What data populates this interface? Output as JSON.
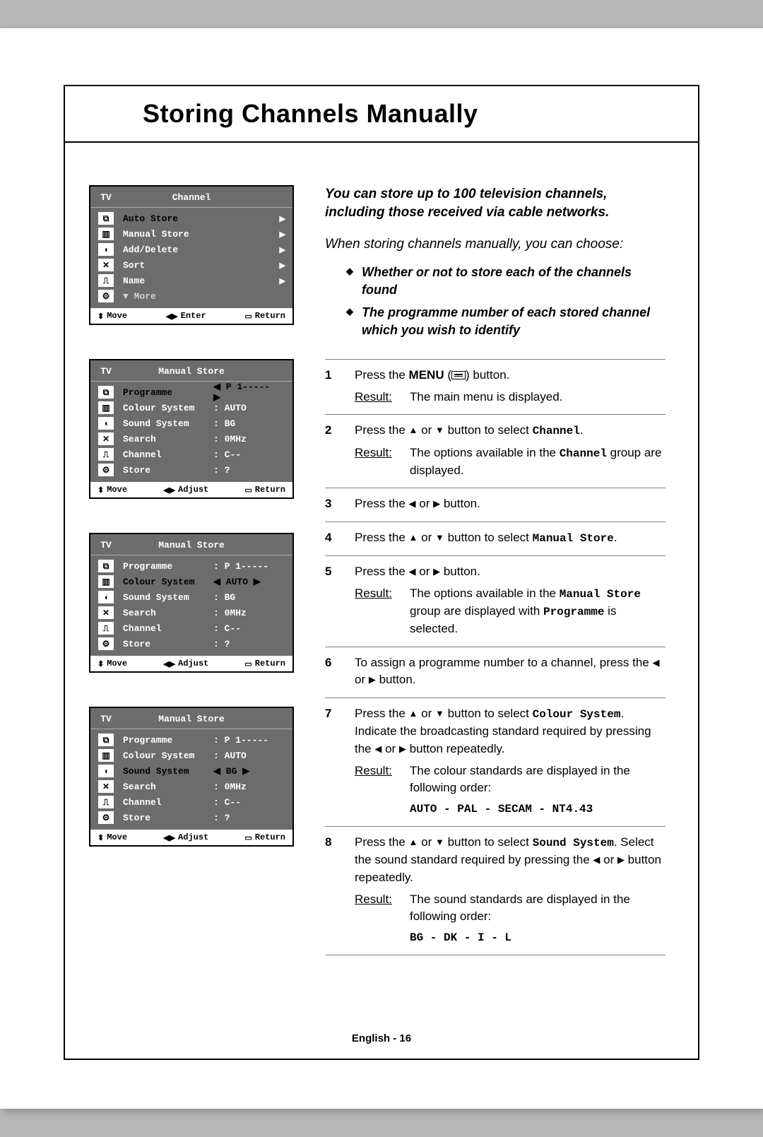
{
  "title": "Storing Channels Manually",
  "intro": "You can store up to 100 television channels, including those received via cable networks.",
  "choose_line": "When storing channels manually, you can choose:",
  "bullets": [
    "Whether or not to store each of the channels found",
    "The programme number of each stored channel which you wish to identify"
  ],
  "osd_menus": [
    {
      "id": "channel-menu",
      "tv_label": "TV",
      "header": "Channel",
      "rows": [
        {
          "icon": "input-icon",
          "glyph": "⧉",
          "label": "Auto Store",
          "value": "",
          "arrow": "▶",
          "selected": true
        },
        {
          "icon": "picture-icon",
          "glyph": "▥",
          "label": "Manual Store",
          "value": "",
          "arrow": "▶"
        },
        {
          "icon": "sound-icon",
          "glyph": "◖",
          "label": "Add/Delete",
          "value": "",
          "arrow": "▶"
        },
        {
          "icon": "channel-icon",
          "glyph": "✕",
          "label": "Sort",
          "value": "",
          "arrow": "▶"
        },
        {
          "icon": "setup-icon",
          "glyph": "⎍",
          "label": "Name",
          "value": "",
          "arrow": "▶"
        },
        {
          "icon": "function-icon",
          "glyph": "⚙",
          "label": "▼ More",
          "value": "",
          "arrow": "",
          "more": true
        }
      ],
      "footer": {
        "move": "Move",
        "center": "Enter",
        "return": "Return"
      }
    },
    {
      "id": "manual-store-programme",
      "tv_label": "TV",
      "header": "Manual Store",
      "rows": [
        {
          "icon": "input-icon",
          "glyph": "⧉",
          "label": "Programme",
          "value": "◀ P 1-----  ▶",
          "selected": true
        },
        {
          "icon": "picture-icon",
          "glyph": "▥",
          "label": "Colour System",
          "value": ": AUTO"
        },
        {
          "icon": "sound-icon",
          "glyph": "◖",
          "label": "Sound System",
          "value": ": BG"
        },
        {
          "icon": "channel-icon",
          "glyph": "✕",
          "label": "Search",
          "value": ": 0MHz"
        },
        {
          "icon": "setup-icon",
          "glyph": "⎍",
          "label": "Channel",
          "value": ": C--"
        },
        {
          "icon": "function-icon",
          "glyph": "⚙",
          "label": "Store",
          "value": ": ?"
        }
      ],
      "footer": {
        "move": "Move",
        "center": "Adjust",
        "return": "Return"
      }
    },
    {
      "id": "manual-store-colour",
      "tv_label": "TV",
      "header": "Manual Store",
      "rows": [
        {
          "icon": "input-icon",
          "glyph": "⧉",
          "label": "Programme",
          "value": ": P 1-----"
        },
        {
          "icon": "picture-icon",
          "glyph": "▥",
          "label": "Colour System",
          "value": "◀ AUTO  ▶",
          "selected": true
        },
        {
          "icon": "sound-icon",
          "glyph": "◖",
          "label": "Sound System",
          "value": ": BG"
        },
        {
          "icon": "channel-icon",
          "glyph": "✕",
          "label": "Search",
          "value": ": 0MHz"
        },
        {
          "icon": "setup-icon",
          "glyph": "⎍",
          "label": "Channel",
          "value": ": C--"
        },
        {
          "icon": "function-icon",
          "glyph": "⚙",
          "label": "Store",
          "value": ": ?"
        }
      ],
      "footer": {
        "move": "Move",
        "center": "Adjust",
        "return": "Return"
      }
    },
    {
      "id": "manual-store-sound",
      "tv_label": "TV",
      "header": "Manual Store",
      "rows": [
        {
          "icon": "input-icon",
          "glyph": "⧉",
          "label": "Programme",
          "value": ": P 1-----"
        },
        {
          "icon": "picture-icon",
          "glyph": "▥",
          "label": "Colour System",
          "value": ": AUTO"
        },
        {
          "icon": "sound-icon",
          "glyph": "◖",
          "label": "Sound System",
          "value": "◀ BG    ▶",
          "selected": true
        },
        {
          "icon": "channel-icon",
          "glyph": "✕",
          "label": "Search",
          "value": ": 0MHz"
        },
        {
          "icon": "setup-icon",
          "glyph": "⎍",
          "label": "Channel",
          "value": ": C--"
        },
        {
          "icon": "function-icon",
          "glyph": "⚙",
          "label": "Store",
          "value": ": ?"
        }
      ],
      "footer": {
        "move": "Move",
        "center": "Adjust",
        "return": "Return"
      }
    }
  ],
  "steps": [
    {
      "n": "1",
      "text_pre": "Press the ",
      "bold1": "MENU",
      "text_mid": " (",
      "glyph": "menu",
      "text_post": ") button.",
      "result": "The main menu is displayed."
    },
    {
      "n": "2",
      "text_pre": "Press the ▲ or ▼ button to select ",
      "mono1": "Channel",
      "text_post": ".",
      "result_pre": "The options available in the ",
      "result_mono": "Channel",
      "result_post": " group are displayed."
    },
    {
      "n": "3",
      "text": "Press the ◀ or ▶ button."
    },
    {
      "n": "4",
      "text_pre": "Press the ▲ or ▼ button to select ",
      "mono1": "Manual Store",
      "text_post": "."
    },
    {
      "n": "5",
      "text": "Press the ◀ or ▶ button.",
      "result_pre": "The options available in the ",
      "result_mono": "Manual Store",
      "result_mid": " group are displayed with ",
      "result_mono2": "Programme",
      "result_post": " is selected."
    },
    {
      "n": "6",
      "text": "To assign a programme number to a channel, press the ◀ or ▶ button."
    },
    {
      "n": "7",
      "text_pre": "Press the ▲ or ▼ button to select ",
      "mono1": "Colour System",
      "text_post": ". Indicate the broadcasting standard required by pressing the ◀ or ▶ button repeatedly.",
      "result": "The colour standards are displayed in the following order:",
      "order": "AUTO - PAL - SECAM - NT4.43"
    },
    {
      "n": "8",
      "text_pre": "Press the ▲ or ▼ button to select ",
      "mono1": "Sound System",
      "text_post": ". Select the sound standard required by pressing the ◀ or ▶ button repeatedly.",
      "result": "The sound standards are displayed in the following order:",
      "order": "BG - DK - I - L"
    }
  ],
  "page_num": "English - 16",
  "footer_symbols": {
    "move_glyph": "⬍",
    "enter_glyph": "◀▶",
    "return_glyph": "▭"
  }
}
